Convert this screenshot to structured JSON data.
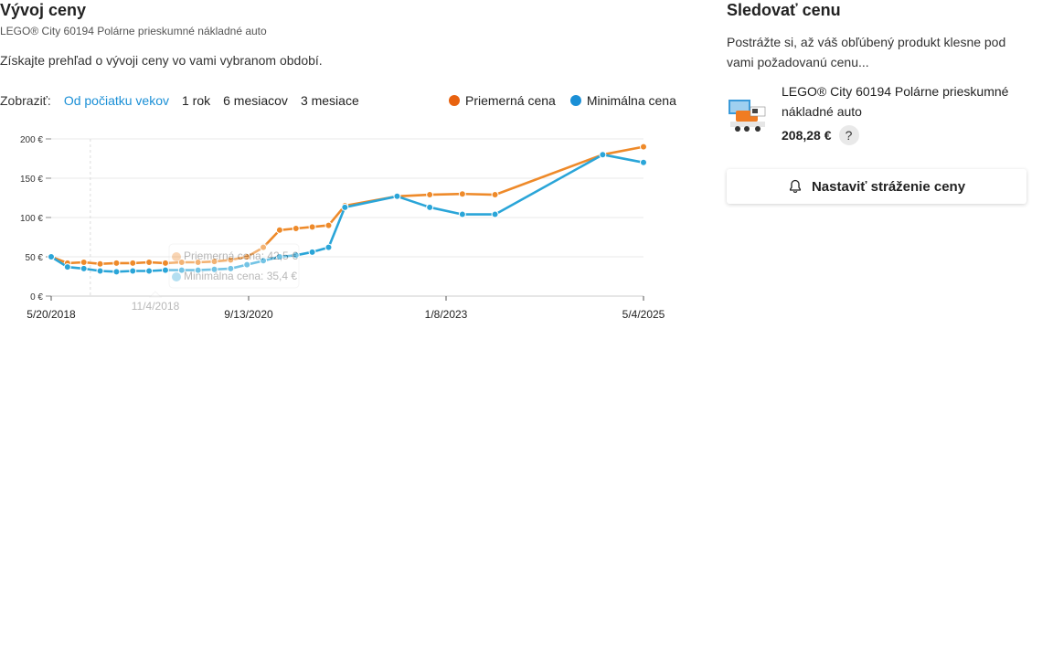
{
  "header": {
    "title": "Vývoj ceny",
    "subtitle": "LEGO® City 60194 Polárne prieskumné nákladné auto",
    "intro": "Získajte prehľad o vývoji ceny vo vami vybranom období."
  },
  "range": {
    "label": "Zobraziť:",
    "options": [
      "Od počiatku vekov",
      "1 rok",
      "6 mesiacov",
      "3 mesiace"
    ],
    "active_index": 0
  },
  "legend": {
    "items": [
      {
        "label": "Priemerná cena",
        "color": "#e8620f"
      },
      {
        "label": "Minimálna cena",
        "color": "#1a8fd6"
      }
    ]
  },
  "tooltip": {
    "date": "11/4/2018",
    "avg": "Priemerná cena: 42,5 €",
    "min": "Minimálna cena: 35,4 €"
  },
  "chart_data": {
    "type": "line",
    "title": "",
    "ylabel": "",
    "xlabel": "",
    "ylim": [
      0,
      200
    ],
    "yticks": [
      0,
      50,
      100,
      150,
      200
    ],
    "ytick_labels": [
      "0 €",
      "50 €",
      "100 €",
      "150 €",
      "200 €"
    ],
    "xlim": [
      "2018-05-20",
      "2025-05-04"
    ],
    "xticks": [
      "2018-05-20",
      "2020-09-13",
      "2023-01-08",
      "2025-05-04"
    ],
    "xtick_labels": [
      "5/20/2018",
      "9/13/2020",
      "1/8/2023",
      "5/4/2025"
    ],
    "hover_date": "2018-11-04",
    "series": [
      {
        "name": "Priemerná cena",
        "color": "#ee8a2a",
        "points": [
          [
            "2018-05-20",
            50
          ],
          [
            "2018-07-29",
            42
          ],
          [
            "2018-10-07",
            43
          ],
          [
            "2018-12-16",
            41
          ],
          [
            "2019-02-24",
            42
          ],
          [
            "2019-05-05",
            42
          ],
          [
            "2019-07-14",
            43
          ],
          [
            "2019-09-22",
            42
          ],
          [
            "2019-12-01",
            43
          ],
          [
            "2020-02-09",
            43
          ],
          [
            "2020-04-19",
            44
          ],
          [
            "2020-06-28",
            46
          ],
          [
            "2020-09-06",
            50
          ],
          [
            "2020-11-15",
            62
          ],
          [
            "2021-01-24",
            84
          ],
          [
            "2021-04-04",
            86
          ],
          [
            "2021-06-13",
            88
          ],
          [
            "2021-08-22",
            90
          ],
          [
            "2021-10-31",
            115
          ],
          [
            "2022-06-12",
            127
          ],
          [
            "2022-10-30",
            129
          ],
          [
            "2023-03-19",
            130
          ],
          [
            "2023-08-06",
            129
          ],
          [
            "2024-11-10",
            180
          ],
          [
            "2025-05-04",
            190
          ]
        ]
      },
      {
        "name": "Minimálna cena",
        "color": "#2aa5d8",
        "points": [
          [
            "2018-05-20",
            50
          ],
          [
            "2018-07-29",
            37
          ],
          [
            "2018-10-07",
            35
          ],
          [
            "2018-12-16",
            32
          ],
          [
            "2019-02-24",
            31
          ],
          [
            "2019-05-05",
            32
          ],
          [
            "2019-07-14",
            32
          ],
          [
            "2019-09-22",
            33
          ],
          [
            "2019-12-01",
            33
          ],
          [
            "2020-02-09",
            33
          ],
          [
            "2020-04-19",
            34
          ],
          [
            "2020-06-28",
            35
          ],
          [
            "2020-09-06",
            40
          ],
          [
            "2020-11-15",
            45
          ],
          [
            "2021-01-24",
            50
          ],
          [
            "2021-04-04",
            52
          ],
          [
            "2021-06-13",
            56
          ],
          [
            "2021-08-22",
            62
          ],
          [
            "2021-10-31",
            113
          ],
          [
            "2022-06-12",
            127
          ],
          [
            "2022-10-30",
            113
          ],
          [
            "2023-03-19",
            104
          ],
          [
            "2023-08-06",
            104
          ],
          [
            "2024-11-10",
            180
          ],
          [
            "2025-05-04",
            170
          ]
        ]
      }
    ],
    "grid": true
  },
  "watch": {
    "title": "Sledovať cenu",
    "desc": "Postrážte si, až váš obľúbený produkt klesne pod vami požadovanú cenu...",
    "product_name": "LEGO® City 60194 Polárne prieskumné nákladné auto",
    "price": "208,28 €",
    "help": "?",
    "button": "Nastaviť stráženie ceny"
  }
}
